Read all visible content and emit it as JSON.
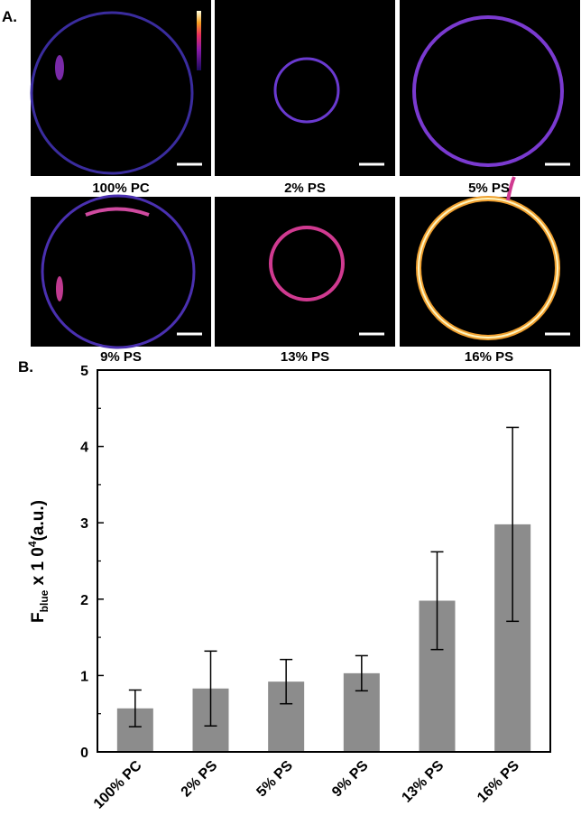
{
  "panel_a": {
    "label": "A.",
    "images": [
      "100% PC",
      "2% PS",
      "5% PS",
      "9% PS",
      "13% PS",
      "16% PS"
    ]
  },
  "chart_data": {
    "type": "bar",
    "panel_label": "B.",
    "ylabel": {
      "main": "F",
      "sub": "blue",
      "mid": " x 1 0",
      "sup": "4",
      "end": "(a.u.)"
    },
    "categories": [
      "100% PC",
      "2% PS",
      "5% PS",
      "9% PS",
      "13% PS",
      "16% PS"
    ],
    "values": [
      0.57,
      0.83,
      0.92,
      1.03,
      1.98,
      2.98
    ],
    "errors": [
      0.24,
      0.49,
      0.29,
      0.23,
      0.64,
      1.27
    ],
    "color": "#8c8c8c",
    "ylim": [
      0,
      5
    ],
    "yticks": [
      0,
      1,
      2,
      3,
      4,
      5
    ],
    "minor_yticks": [
      0.5,
      1.5,
      2.5,
      3.5,
      4.5
    ]
  }
}
